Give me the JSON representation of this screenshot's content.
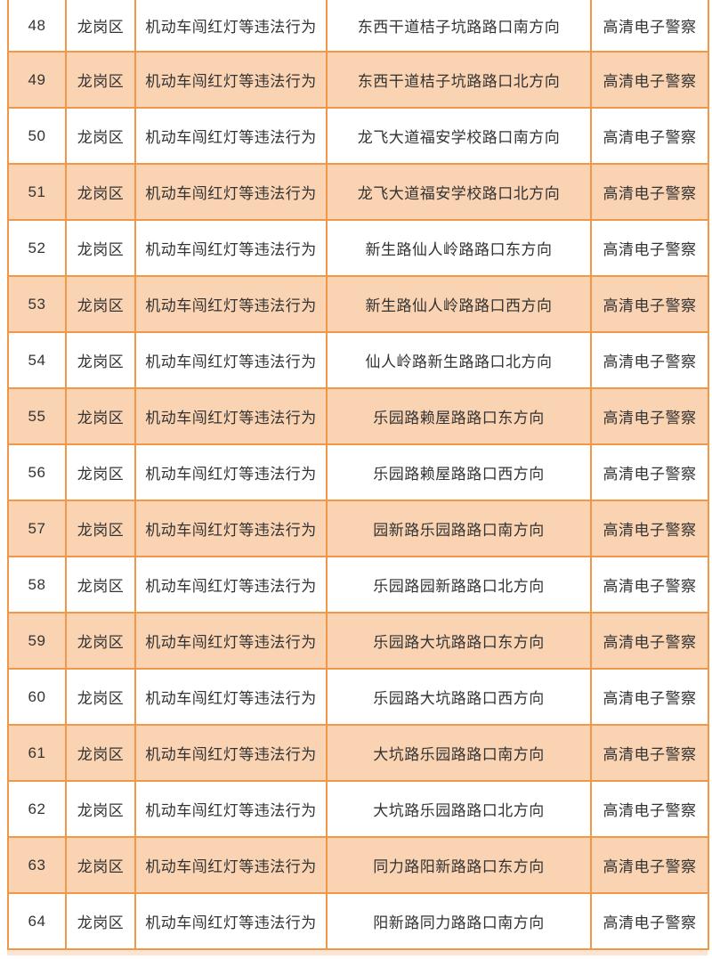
{
  "colors": {
    "border": "#F09748",
    "row_shaded": "#FAD3B3",
    "row_plain": "#FFFFFF",
    "text": "#333333",
    "bottom_strip": "#FBE4D4"
  },
  "table": {
    "rows": [
      {
        "no": "48",
        "district": "龙岗区",
        "violation": "机动车闯红灯等违法行为",
        "location": "东西干道桔子坑路路口南方向",
        "device": "高清电子警察"
      },
      {
        "no": "49",
        "district": "龙岗区",
        "violation": "机动车闯红灯等违法行为",
        "location": "东西干道桔子坑路路口北方向",
        "device": "高清电子警察"
      },
      {
        "no": "50",
        "district": "龙岗区",
        "violation": "机动车闯红灯等违法行为",
        "location": "龙飞大道福安学校路口南方向",
        "device": "高清电子警察"
      },
      {
        "no": "51",
        "district": "龙岗区",
        "violation": "机动车闯红灯等违法行为",
        "location": "龙飞大道福安学校路口北方向",
        "device": "高清电子警察"
      },
      {
        "no": "52",
        "district": "龙岗区",
        "violation": "机动车闯红灯等违法行为",
        "location": "新生路仙人岭路路口东方向",
        "device": "高清电子警察"
      },
      {
        "no": "53",
        "district": "龙岗区",
        "violation": "机动车闯红灯等违法行为",
        "location": "新生路仙人岭路路口西方向",
        "device": "高清电子警察"
      },
      {
        "no": "54",
        "district": "龙岗区",
        "violation": "机动车闯红灯等违法行为",
        "location": "仙人岭路新生路路口北方向",
        "device": "高清电子警察"
      },
      {
        "no": "55",
        "district": "龙岗区",
        "violation": "机动车闯红灯等违法行为",
        "location": "乐园路赖屋路路口东方向",
        "device": "高清电子警察"
      },
      {
        "no": "56",
        "district": "龙岗区",
        "violation": "机动车闯红灯等违法行为",
        "location": "乐园路赖屋路路口西方向",
        "device": "高清电子警察"
      },
      {
        "no": "57",
        "district": "龙岗区",
        "violation": "机动车闯红灯等违法行为",
        "location": "园新路乐园路路口南方向",
        "device": "高清电子警察"
      },
      {
        "no": "58",
        "district": "龙岗区",
        "violation": "机动车闯红灯等违法行为",
        "location": "乐园路园新路路口北方向",
        "device": "高清电子警察"
      },
      {
        "no": "59",
        "district": "龙岗区",
        "violation": "机动车闯红灯等违法行为",
        "location": "乐园路大坑路路口东方向",
        "device": "高清电子警察"
      },
      {
        "no": "60",
        "district": "龙岗区",
        "violation": "机动车闯红灯等违法行为",
        "location": "乐园路大坑路路口西方向",
        "device": "高清电子警察"
      },
      {
        "no": "61",
        "district": "龙岗区",
        "violation": "机动车闯红灯等违法行为",
        "location": "大坑路乐园路路口南方向",
        "device": "高清电子警察"
      },
      {
        "no": "62",
        "district": "龙岗区",
        "violation": "机动车闯红灯等违法行为",
        "location": "大坑路乐园路路口北方向",
        "device": "高清电子警察"
      },
      {
        "no": "63",
        "district": "龙岗区",
        "violation": "机动车闯红灯等违法行为",
        "location": "同力路阳新路路口东方向",
        "device": "高清电子警察"
      },
      {
        "no": "64",
        "district": "龙岗区",
        "violation": "机动车闯红灯等违法行为",
        "location": "阳新路同力路路口南方向",
        "device": "高清电子警察"
      }
    ]
  }
}
